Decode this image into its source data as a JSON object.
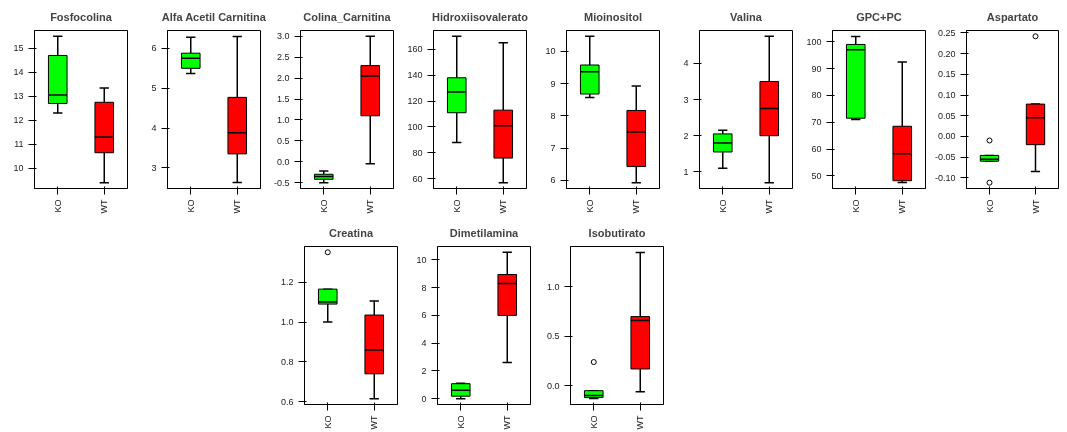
{
  "chart_data": [
    {
      "type": "box",
      "title": "Fosfocolina",
      "categories": [
        "KO",
        "WT"
      ],
      "colors": [
        "#00ff00",
        "#ff0000"
      ],
      "ylim": [
        9.16,
        15.74
      ],
      "yticks": [
        10,
        11,
        12,
        13,
        14,
        15
      ],
      "boxes": [
        {
          "low": 12.3,
          "q1": 12.7,
          "median": 13.05,
          "q3": 14.7,
          "high": 15.5
        },
        {
          "low": 9.4,
          "q1": 10.65,
          "median": 11.3,
          "q3": 12.75,
          "high": 13.35
        }
      ]
    },
    {
      "type": "box",
      "title": "Alfa Acetil Carnitina",
      "categories": [
        "KO",
        "WT"
      ],
      "colors": [
        "#00ff00",
        "#ff0000"
      ],
      "ylim": [
        2.48,
        6.45
      ],
      "yticks": [
        3,
        4,
        5,
        6
      ],
      "boxes": [
        {
          "low": 5.37,
          "q1": 5.5,
          "median": 5.75,
          "q3": 5.88,
          "high": 6.28
        },
        {
          "low": 2.63,
          "q1": 3.35,
          "median": 3.88,
          "q3": 4.77,
          "high": 6.3
        }
      ]
    },
    {
      "type": "box",
      "title": "Colina_Carnitina",
      "categories": [
        "KO",
        "WT"
      ],
      "colors": [
        "#00ff00",
        "#ff0000"
      ],
      "ylim": [
        -0.64,
        3.14
      ],
      "yticks": [
        {
          "value": -0.5,
          "label": "-0.5"
        },
        {
          "value": 0,
          "label": "0.0"
        },
        {
          "value": 0.5,
          "label": "0.5"
        },
        {
          "value": 1,
          "label": "1.0"
        },
        {
          "value": 1.5,
          "label": "1.5"
        },
        {
          "value": 2,
          "label": "2.0"
        },
        {
          "value": 2.5,
          "label": "2.5"
        },
        {
          "value": 3,
          "label": "3.0"
        }
      ],
      "boxes": [
        {
          "low": -0.5,
          "q1": -0.42,
          "median": -0.35,
          "q3": -0.3,
          "high": -0.22
        },
        {
          "low": -0.05,
          "q1": 1.1,
          "median": 2.05,
          "q3": 2.3,
          "high": 3.0
        }
      ]
    },
    {
      "type": "box",
      "title": "Hidroxiisovalerato",
      "categories": [
        "KO",
        "WT"
      ],
      "colors": [
        "#00ff00",
        "#ff0000"
      ],
      "ylim": [
        52.5,
        174.5
      ],
      "yticks": [
        60,
        80,
        100,
        120,
        140,
        160
      ],
      "boxes": [
        {
          "low": 88,
          "q1": 111,
          "median": 127,
          "q3": 138,
          "high": 170
        },
        {
          "low": 57,
          "q1": 76,
          "median": 101,
          "q3": 113,
          "high": 165
        }
      ]
    },
    {
      "type": "box",
      "title": "Mioinositol",
      "categories": [
        "KO",
        "WT"
      ],
      "colors": [
        "#00ff00",
        "#ff0000"
      ],
      "ylim": [
        5.75,
        10.65
      ],
      "yticks": [
        6,
        7,
        8,
        9,
        10
      ],
      "boxes": [
        {
          "low": 8.57,
          "q1": 8.68,
          "median": 9.37,
          "q3": 9.58,
          "high": 10.47
        },
        {
          "low": 5.93,
          "q1": 6.43,
          "median": 7.5,
          "q3": 8.17,
          "high": 8.93
        }
      ]
    },
    {
      "type": "box",
      "title": "Valina",
      "categories": [
        "KO",
        "WT"
      ],
      "colors": [
        "#00ff00",
        "#ff0000"
      ],
      "ylim": [
        0.54,
        4.91
      ],
      "yticks": [
        1,
        2,
        3,
        4
      ],
      "boxes": [
        {
          "low": 1.1,
          "q1": 1.55,
          "median": 1.8,
          "q3": 2.05,
          "high": 2.15
        },
        {
          "low": 0.7,
          "q1": 2.0,
          "median": 2.75,
          "q3": 3.5,
          "high": 4.75
        }
      ]
    },
    {
      "type": "box",
      "title": "GPC+PC",
      "categories": [
        "KO",
        "WT"
      ],
      "colors": [
        "#00ff00",
        "#ff0000"
      ],
      "ylim": [
        45.3,
        104.2
      ],
      "yticks": [
        50,
        60,
        70,
        80,
        90,
        100
      ],
      "boxes": [
        {
          "low": 71,
          "q1": 71.5,
          "median": 97,
          "q3": 99,
          "high": 102
        },
        {
          "low": 47.5,
          "q1": 48.2,
          "median": 58.3,
          "q3": 68.5,
          "high": 92.5
        }
      ]
    },
    {
      "type": "box",
      "title": "Aspartato",
      "categories": [
        "KO",
        "WT"
      ],
      "colors": [
        "#00ff00",
        "#ff0000"
      ],
      "ylim": [
        -0.126,
        0.256
      ],
      "yticks": [
        {
          "value": -0.1,
          "label": "-0.10"
        },
        {
          "value": -0.05,
          "label": "-0.05"
        },
        {
          "value": 0,
          "label": "0.00"
        },
        {
          "value": 0.05,
          "label": "0.05"
        },
        {
          "value": 0.1,
          "label": "0.10"
        },
        {
          "value": 0.15,
          "label": "0.15"
        },
        {
          "value": 0.2,
          "label": "0.20"
        },
        {
          "value": 0.25,
          "label": "0.25"
        }
      ],
      "boxes": [
        {
          "low": -0.06,
          "q1": -0.06,
          "median": -0.055,
          "q3": -0.046,
          "high": -0.046,
          "outliers": [
            -0.01,
            -0.112
          ]
        },
        {
          "low": -0.085,
          "q1": -0.02,
          "median": 0.045,
          "q3": 0.078,
          "high": 0.078,
          "outliers": [
            0.242
          ]
        }
      ]
    },
    {
      "type": "box",
      "title": "Creatina",
      "categories": [
        "KO",
        "WT"
      ],
      "colors": [
        "#00ff00",
        "#ff0000"
      ],
      "ylim": [
        0.586,
        1.379
      ],
      "yticks": [
        {
          "value": 0.6,
          "label": "0.6"
        },
        {
          "value": 0.8,
          "label": "0.8"
        },
        {
          "value": 1,
          "label": "1.0"
        },
        {
          "value": 1.2,
          "label": "1.2"
        }
      ],
      "boxes": [
        {
          "low": 1.0,
          "q1": 1.09,
          "median": 1.1,
          "q3": 1.165,
          "high": 1.165,
          "outliers": [
            1.35
          ]
        },
        {
          "low": 0.615,
          "q1": 0.74,
          "median": 0.86,
          "q3": 1.035,
          "high": 1.105
        }
      ]
    },
    {
      "type": "box",
      "title": "Dimetilamina",
      "categories": [
        "KO",
        "WT"
      ],
      "colors": [
        "#00ff00",
        "#ff0000"
      ],
      "ylim": [
        -0.42,
        10.97
      ],
      "yticks": [
        0,
        2,
        4,
        6,
        8,
        10
      ],
      "boxes": [
        {
          "low": 0.0,
          "q1": 0.18,
          "median": 0.6,
          "q3": 1.08,
          "high": 1.12
        },
        {
          "low": 2.6,
          "q1": 6.0,
          "median": 8.3,
          "q3": 8.95,
          "high": 10.55
        }
      ]
    },
    {
      "type": "box",
      "title": "Isobutirato",
      "categories": [
        "KO",
        "WT"
      ],
      "colors": [
        "#00ff00",
        "#ff0000"
      ],
      "ylim": [
        -0.19,
        1.41
      ],
      "yticks": [
        {
          "value": 0,
          "label": "0.0"
        },
        {
          "value": 0.5,
          "label": "0.5"
        },
        {
          "value": 1,
          "label": "1.0"
        }
      ],
      "boxes": [
        {
          "low": -0.13,
          "q1": -0.12,
          "median": -0.1,
          "q3": -0.05,
          "high": -0.05,
          "outliers": [
            0.24
          ]
        },
        {
          "low": -0.06,
          "q1": 0.17,
          "median": 0.66,
          "q3": 0.7,
          "high": 1.35
        }
      ]
    }
  ]
}
